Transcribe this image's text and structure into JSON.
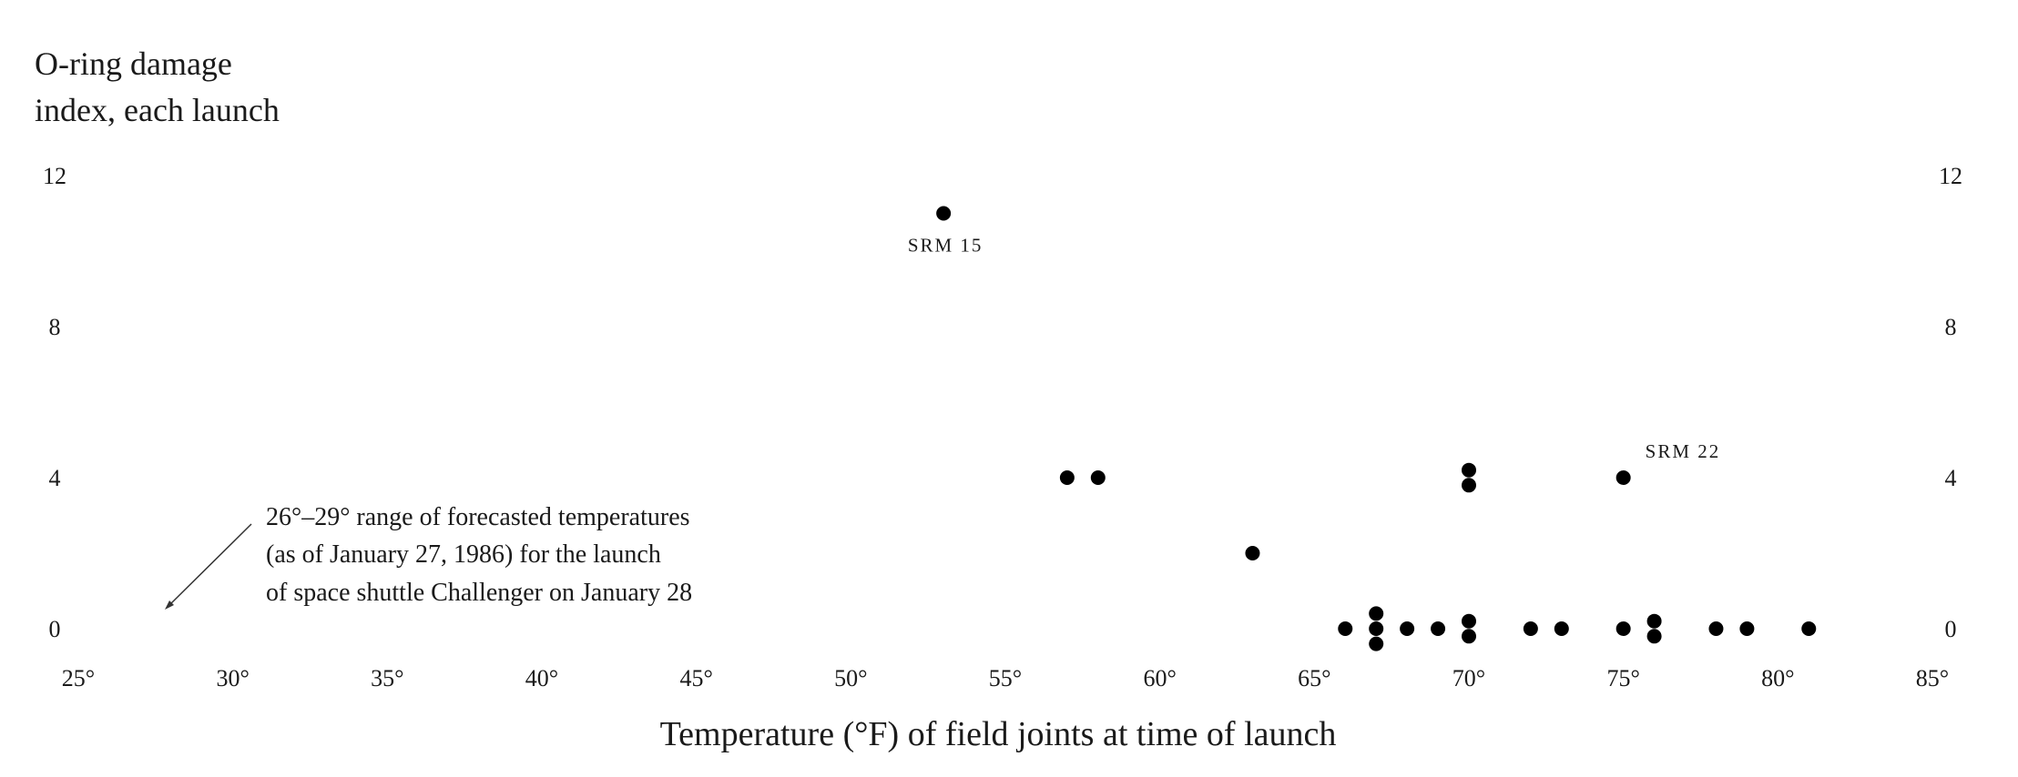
{
  "chart_data": {
    "type": "scatter",
    "title": [
      "O-ring damage",
      "index, each launch"
    ],
    "xlabel": "Temperature (°F) of field joints at time of launch",
    "ylabel": "",
    "xlim": [
      25,
      85
    ],
    "ylim": [
      0,
      12
    ],
    "x_ticks": [
      25,
      30,
      35,
      40,
      45,
      50,
      55,
      60,
      65,
      70,
      75,
      80,
      85
    ],
    "x_tick_labels": [
      "25°",
      "30°",
      "35°",
      "40°",
      "45°",
      "50°",
      "55°",
      "60°",
      "65°",
      "70°",
      "75°",
      "80°",
      "85°"
    ],
    "y_ticks": [
      0,
      4,
      8,
      12
    ],
    "y_tick_labels": [
      "0",
      "4",
      "8",
      "12"
    ],
    "grid": false,
    "points": [
      {
        "x": 53,
        "y": 11
      },
      {
        "x": 57,
        "y": 4
      },
      {
        "x": 58,
        "y": 4
      },
      {
        "x": 63,
        "y": 2
      },
      {
        "x": 66,
        "y": 0
      },
      {
        "x": 67,
        "y": 0.4
      },
      {
        "x": 67,
        "y": 0
      },
      {
        "x": 67,
        "y": -0.4
      },
      {
        "x": 68,
        "y": 0
      },
      {
        "x": 69,
        "y": 0
      },
      {
        "x": 70,
        "y": 4.2
      },
      {
        "x": 70,
        "y": 3.8
      },
      {
        "x": 70,
        "y": 0.2
      },
      {
        "x": 70,
        "y": -0.2
      },
      {
        "x": 72,
        "y": 0
      },
      {
        "x": 73,
        "y": 0
      },
      {
        "x": 75,
        "y": 4
      },
      {
        "x": 75,
        "y": 0
      },
      {
        "x": 76,
        "y": 0.2
      },
      {
        "x": 76,
        "y": -0.2
      },
      {
        "x": 78,
        "y": 0
      },
      {
        "x": 79,
        "y": 0
      },
      {
        "x": 81,
        "y": 0
      }
    ],
    "point_labels": [
      {
        "text": "SRM 15",
        "x": 53,
        "y": 11
      },
      {
        "text": "SRM 22",
        "x": 75,
        "y": 4
      }
    ],
    "annotation": {
      "lines": [
        "26°–29° range of forecasted temperatures",
        "(as of January 27, 1986) for the launch",
        "of space shuttle Challenger on January 28"
      ]
    }
  }
}
